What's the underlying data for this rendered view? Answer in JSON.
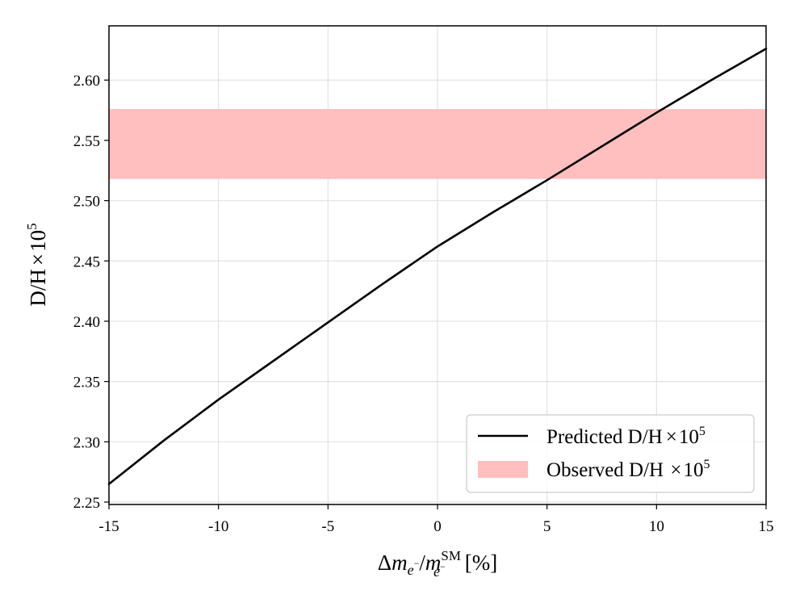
{
  "chart_data": {
    "type": "line",
    "title": "",
    "xlabel": {
      "delta": "Δ",
      "m1": "m",
      "sub1": "e",
      "sub1_sup": "−",
      "slash": "/",
      "m2": "m",
      "sub2": "e",
      "sub2_sup": "−",
      "sup2": "SM",
      "unit": "[%]"
    },
    "ylabel": "D/H × 10^5",
    "ylabel_parts": {
      "base": "D/H",
      "times": "×",
      "ten": "10",
      "exp": "5"
    },
    "xlim": [
      -15,
      15
    ],
    "ylim": [
      2.248,
      2.645
    ],
    "x_ticks": [
      -15,
      -10,
      -5,
      0,
      5,
      10,
      15
    ],
    "x_tick_labels": [
      "-15",
      "-10",
      "-5",
      "0",
      "5",
      "10",
      "15"
    ],
    "y_ticks": [
      2.25,
      2.3,
      2.35,
      2.4,
      2.45,
      2.5,
      2.55,
      2.6
    ],
    "y_tick_labels": [
      "2.25",
      "2.30",
      "2.35",
      "2.40",
      "2.45",
      "2.50",
      "2.55",
      "2.60"
    ],
    "grid": true,
    "legend_position": "lower-right",
    "series": [
      {
        "name": "Predicted D/H × 10^5",
        "legend_parts": {
          "base": "Predicted D/H",
          "times": "×",
          "ten": "10",
          "exp": "5"
        },
        "type": "line",
        "color": "#000000",
        "x": [
          -15,
          -12.5,
          -10,
          -7.5,
          -5,
          -2.5,
          0,
          2.5,
          5,
          7.5,
          10,
          12.5,
          15
        ],
        "y": [
          2.265,
          2.301,
          2.335,
          2.367,
          2.399,
          2.431,
          2.462,
          2.49,
          2.517,
          2.545,
          2.573,
          2.6,
          2.626
        ]
      },
      {
        "name": "Observed D/H × 10^5",
        "legend_parts": {
          "base": "Observed D/H ",
          "times": "×",
          "ten": "10",
          "exp": "5"
        },
        "type": "band",
        "color": "#ffbfbf",
        "y_low": 2.518,
        "y_high": 2.576
      }
    ]
  }
}
